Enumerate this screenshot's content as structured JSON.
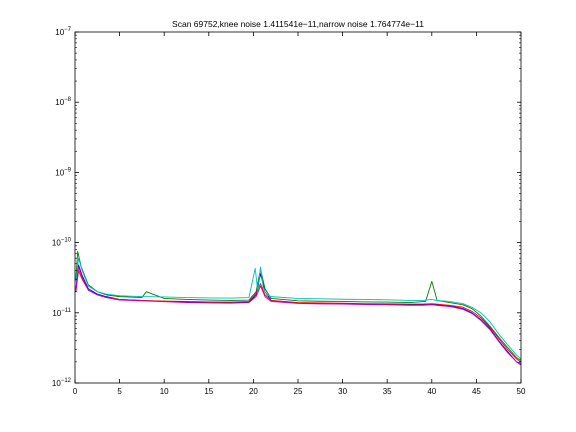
{
  "chart_data": {
    "type": "line",
    "title": "Scan 69752,knee noise 1.411541e−11,narrow noise 1.764774e−11",
    "xlabel": "",
    "ylabel": "",
    "xlim": [
      0,
      50
    ],
    "ylim": [
      1e-12,
      1e-07
    ],
    "yscale": "log",
    "grid": false,
    "x_ticks": [
      0,
      5,
      10,
      15,
      20,
      25,
      30,
      35,
      40,
      45,
      50
    ],
    "x_tick_labels": [
      "0",
      "5",
      "10",
      "15",
      "20",
      "25",
      "30",
      "35",
      "40",
      "45",
      "50"
    ],
    "y_ticks": [
      1e-12,
      1e-11,
      1e-10,
      1e-09,
      1e-08,
      1e-07
    ],
    "y_tick_labels": [
      {
        "base": "10",
        "exp": "−12"
      },
      {
        "base": "10",
        "exp": "−11"
      },
      {
        "base": "10",
        "exp": "−10"
      },
      {
        "base": "10",
        "exp": "−9"
      },
      {
        "base": "10",
        "exp": "−8"
      },
      {
        "base": "10",
        "exp": "−7"
      }
    ],
    "series": [
      {
        "color": "#0000ff",
        "x": [
          0.1,
          0.4,
          0.8,
          1.5,
          2.5,
          3.5,
          5,
          7.5,
          10,
          12.5,
          15,
          17.5,
          19.5,
          20.3,
          20.8,
          21.3,
          22,
          25,
          27.5,
          30,
          32.5,
          35,
          37.5,
          39,
          40,
          40.5,
          42,
          43.5,
          44.5,
          45.5,
          46.5,
          47.5,
          48.5,
          49.5,
          50
        ],
        "y": [
          2.2e-11,
          4.8e-11,
          3.4e-11,
          2.2e-11,
          1.85e-11,
          1.7e-11,
          1.55e-11,
          1.5e-11,
          1.45e-11,
          1.42e-11,
          1.4e-11,
          1.4e-11,
          1.42e-11,
          1.8e-11,
          3.6e-11,
          2e-11,
          1.5e-11,
          1.38e-11,
          1.36e-11,
          1.35e-11,
          1.33e-11,
          1.32e-11,
          1.3e-11,
          1.3e-11,
          1.32e-11,
          1.3e-11,
          1.25e-11,
          1.15e-11,
          1e-11,
          8e-12,
          6e-12,
          4e-12,
          2.8e-12,
          2e-12,
          1.9e-12
        ]
      },
      {
        "color": "#007f00",
        "x": [
          0.1,
          0.3,
          0.7,
          1.5,
          2.5,
          3.5,
          5,
          7.5,
          8,
          10,
          12.5,
          15,
          17.5,
          19.5,
          20.3,
          20.8,
          21.3,
          22,
          25,
          27.5,
          30,
          32.5,
          35,
          37.5,
          39.3,
          40,
          40.6,
          42,
          43.5,
          44.5,
          45.5,
          46.5,
          47.5,
          48.5,
          49.5,
          50
        ],
        "y": [
          3e-11,
          7.5e-11,
          4.5e-11,
          2.5e-11,
          2e-11,
          1.8e-11,
          1.7e-11,
          1.65e-11,
          2e-11,
          1.6e-11,
          1.55e-11,
          1.52e-11,
          1.5e-11,
          1.52e-11,
          2e-11,
          4.2e-11,
          2.2e-11,
          1.6e-11,
          1.48e-11,
          1.46e-11,
          1.45e-11,
          1.43e-11,
          1.42e-11,
          1.4e-11,
          1.45e-11,
          2.8e-11,
          1.5e-11,
          1.4e-11,
          1.3e-11,
          1.15e-11,
          9e-12,
          6.5e-12,
          4.5e-12,
          3.2e-12,
          2.3e-12,
          2.1e-12
        ]
      },
      {
        "color": "#ff0000",
        "x": [
          0.1,
          0.4,
          0.8,
          1.5,
          2.5,
          3.5,
          5,
          7.5,
          10,
          12.5,
          15,
          17.5,
          19.5,
          20.3,
          20.8,
          21.3,
          22,
          25,
          27.5,
          30,
          32.5,
          35,
          37.5,
          39,
          40,
          40.5,
          42,
          43.5,
          44.5,
          45.5,
          46.5,
          47.5,
          48.5,
          49.5,
          50
        ],
        "y": [
          2e-11,
          4e-11,
          3e-11,
          2.1e-11,
          1.8e-11,
          1.65e-11,
          1.55e-11,
          1.5e-11,
          1.47e-11,
          1.45e-11,
          1.43e-11,
          1.42e-11,
          1.45e-11,
          1.9e-11,
          2.6e-11,
          1.8e-11,
          1.5e-11,
          1.4e-11,
          1.38e-11,
          1.37e-11,
          1.35e-11,
          1.34e-11,
          1.33e-11,
          1.33e-11,
          1.35e-11,
          1.33e-11,
          1.28e-11,
          1.2e-11,
          1.05e-11,
          8.5e-12,
          6.3e-12,
          4.3e-12,
          3e-12,
          2.2e-12,
          2e-12
        ]
      },
      {
        "color": "#00bfbf",
        "x": [
          0.1,
          0.4,
          0.8,
          1.5,
          2.5,
          3.5,
          5,
          7.5,
          10,
          12.5,
          15,
          17.5,
          19.5,
          20.2,
          20.5,
          20.8,
          21.1,
          21.5,
          22,
          25,
          27.5,
          30,
          32.5,
          35,
          37.5,
          39,
          40,
          40.5,
          42,
          43.5,
          44.5,
          45.5,
          46.5,
          47.5,
          48.5,
          49.5,
          50
        ],
        "y": [
          2.8e-11,
          6e-11,
          4e-11,
          2.4e-11,
          2e-11,
          1.85e-11,
          1.75e-11,
          1.7e-11,
          1.68e-11,
          1.65e-11,
          1.63e-11,
          1.62e-11,
          1.65e-11,
          4.3e-11,
          2e-11,
          4.5e-11,
          2.3e-11,
          1.8e-11,
          1.7e-11,
          1.6e-11,
          1.58e-11,
          1.56e-11,
          1.55e-11,
          1.53e-11,
          1.5e-11,
          1.5e-11,
          1.55e-11,
          1.5e-11,
          1.45e-11,
          1.35e-11,
          1.2e-11,
          1e-11,
          7.5e-12,
          5e-12,
          3.5e-12,
          2.5e-12,
          2.2e-12
        ]
      },
      {
        "color": "#bf00bf",
        "x": [
          0.1,
          0.4,
          0.8,
          1.5,
          2.5,
          3.5,
          5,
          7.5,
          10,
          12.5,
          15,
          17.5,
          19.5,
          20.3,
          20.8,
          21.3,
          22,
          25,
          27.5,
          30,
          32.5,
          35,
          37.5,
          39,
          40,
          40.5,
          42,
          43.5,
          44.5,
          45.5,
          46.5,
          47.5,
          48.5,
          49.5,
          50
        ],
        "y": [
          2.1e-11,
          4.5e-11,
          3.2e-11,
          2.1e-11,
          1.8e-11,
          1.65e-11,
          1.52e-11,
          1.48e-11,
          1.44e-11,
          1.4e-11,
          1.38e-11,
          1.37e-11,
          1.4e-11,
          1.7e-11,
          2.4e-11,
          1.7e-11,
          1.45e-11,
          1.36e-11,
          1.34e-11,
          1.33e-11,
          1.31e-11,
          1.3e-11,
          1.28e-11,
          1.28e-11,
          1.3e-11,
          1.28e-11,
          1.23e-11,
          1.12e-11,
          9.8e-12,
          7.8e-12,
          5.8e-12,
          3.9e-12,
          2.7e-12,
          2e-12,
          1.8e-12
        ]
      }
    ]
  }
}
